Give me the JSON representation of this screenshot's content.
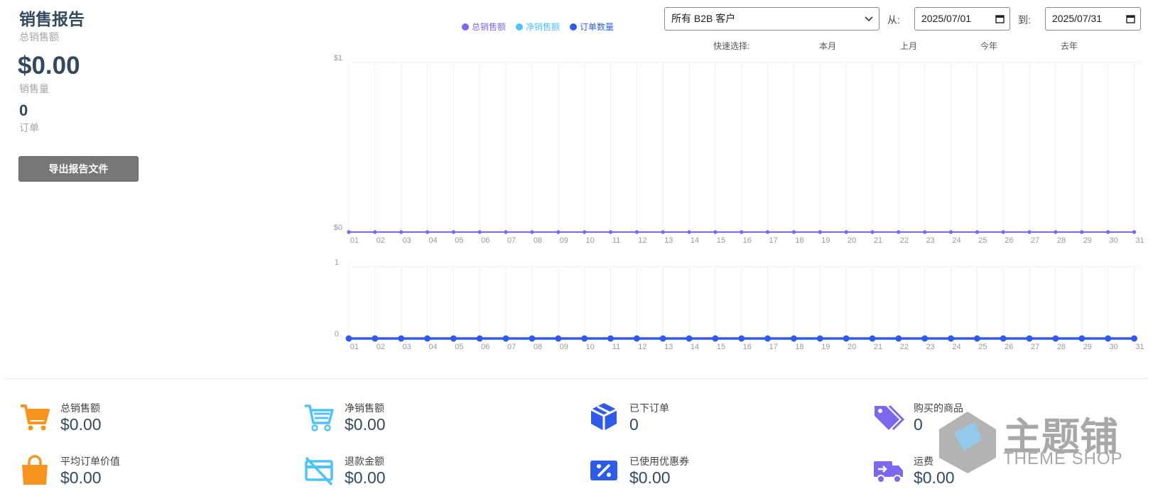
{
  "header": {
    "title": "销售报告",
    "total_sales_label": "总销售额",
    "total_sales": "$0.00",
    "sales_volume_label": "销售量",
    "sales_volume": "0",
    "orders_label": "订单",
    "export_button": "导出报告文件"
  },
  "filters": {
    "customer": "所有 B2B 客户",
    "from_label": "从:",
    "from_date": "2025/07/01",
    "to_label": "到:",
    "to_date": "2025/07/31",
    "quick_select_label": "快速选择:",
    "quick_select": [
      "本月",
      "上月",
      "今年",
      "去年"
    ]
  },
  "chart_data": [
    {
      "type": "line",
      "categories": [
        "01",
        "02",
        "03",
        "04",
        "05",
        "06",
        "07",
        "08",
        "09",
        "10",
        "11",
        "12",
        "13",
        "14",
        "15",
        "16",
        "17",
        "18",
        "19",
        "20",
        "21",
        "22",
        "23",
        "24",
        "25",
        "26",
        "27",
        "28",
        "29",
        "30",
        "31"
      ],
      "series": [
        {
          "name": "总销售额",
          "color": "#7b68ee",
          "values": [
            0,
            0,
            0,
            0,
            0,
            0,
            0,
            0,
            0,
            0,
            0,
            0,
            0,
            0,
            0,
            0,
            0,
            0,
            0,
            0,
            0,
            0,
            0,
            0,
            0,
            0,
            0,
            0,
            0,
            0,
            0
          ]
        },
        {
          "name": "净销售额",
          "color": "#4fc3f7",
          "values": [
            0,
            0,
            0,
            0,
            0,
            0,
            0,
            0,
            0,
            0,
            0,
            0,
            0,
            0,
            0,
            0,
            0,
            0,
            0,
            0,
            0,
            0,
            0,
            0,
            0,
            0,
            0,
            0,
            0,
            0,
            0
          ]
        }
      ],
      "ylim": [
        0,
        1
      ],
      "yticks": [
        {
          "value": 0,
          "label": "$0"
        },
        {
          "value": 1,
          "label": "$1"
        }
      ],
      "grid": true
    },
    {
      "type": "line",
      "categories": [
        "01",
        "02",
        "03",
        "04",
        "05",
        "06",
        "07",
        "08",
        "09",
        "10",
        "11",
        "12",
        "13",
        "14",
        "15",
        "16",
        "17",
        "18",
        "19",
        "20",
        "21",
        "22",
        "23",
        "24",
        "25",
        "26",
        "27",
        "28",
        "29",
        "30",
        "31"
      ],
      "series": [
        {
          "name": "订单数量",
          "color": "#2f5bea",
          "values": [
            0,
            0,
            0,
            0,
            0,
            0,
            0,
            0,
            0,
            0,
            0,
            0,
            0,
            0,
            0,
            0,
            0,
            0,
            0,
            0,
            0,
            0,
            0,
            0,
            0,
            0,
            0,
            0,
            0,
            0,
            0
          ]
        }
      ],
      "ylim": [
        0,
        1
      ],
      "yticks": [
        0,
        1
      ],
      "grid": true
    }
  ],
  "stats": [
    {
      "label": "总销售额",
      "value": "$0.00",
      "color": "#f7941d"
    },
    {
      "label": "净销售额",
      "value": "$0.00",
      "color": "#4fc3f7"
    },
    {
      "label": "已下订单",
      "value": "0",
      "color": "#2f5bea"
    },
    {
      "label": "购买的商品",
      "value": "0",
      "color": "#7b68ee"
    },
    {
      "label": "平均订单价值",
      "value": "$0.00",
      "color": "#f7941d"
    },
    {
      "label": "退款金额",
      "value": "$0.00",
      "color": "#4fc3f7"
    },
    {
      "label": "已使用优惠券",
      "value": "$0.00",
      "color": "#2f5bea"
    },
    {
      "label": "运费",
      "value": "$0.00",
      "color": "#7b68ee"
    }
  ],
  "watermark": {
    "title": "主题铺",
    "subtitle": "THEME SHOP"
  }
}
